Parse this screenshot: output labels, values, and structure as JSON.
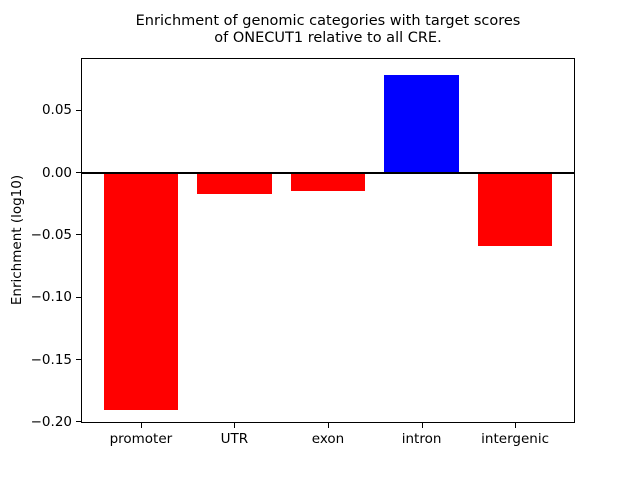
{
  "chart_data": {
    "type": "bar",
    "title": "Enrichment of genomic categories with target scores\nof ONECUT1 relative to all CRE.",
    "title_lines": [
      "Enrichment of genomic categories with target scores",
      "of ONECUT1 relative to all CRE."
    ],
    "xlabel": "",
    "ylabel": "Enrichment (log10)",
    "categories": [
      "promoter",
      "UTR",
      "exon",
      "intron",
      "intergenic"
    ],
    "values": [
      -0.191,
      -0.017,
      -0.015,
      0.078,
      -0.059
    ],
    "bar_colors": [
      "#ff0000",
      "#ff0000",
      "#ff0000",
      "#0000ff",
      "#ff0000"
    ],
    "negative_color": "#ff0000",
    "positive_color": "#0000ff",
    "ylim": [
      -0.201,
      0.092
    ],
    "yticks": [
      0.05,
      0.0,
      -0.05,
      -0.1,
      -0.15,
      -0.2
    ],
    "ytick_labels": [
      "0.05",
      "0.00",
      "−0.05",
      "−0.10",
      "−0.15",
      "−0.20"
    ],
    "zero_line": true,
    "grid": false,
    "legend": "none",
    "bar_width_fraction": 0.8,
    "axis_color": "#000000",
    "text_color": "#000000",
    "background_color": "#ffffff"
  }
}
